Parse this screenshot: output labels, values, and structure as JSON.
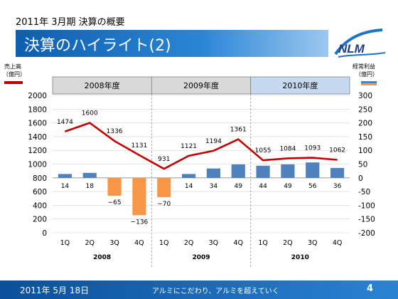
{
  "slide": {
    "supertitle": "2011年 3月期  決算の概要",
    "title": "決算のハイライト(2)",
    "logo_text": "NLM"
  },
  "footer": {
    "date": "2011年 5月 18日",
    "slogan": "アルミにこだわり、アルミを超えていく",
    "page": "4"
  },
  "colors": {
    "sales": "#4f81bd",
    "profit_positive": "#4f81bd",
    "profit_negative": "#f79646",
    "line": "#c00000",
    "header_bg": "#d9d9d9",
    "header_bg_current": "#c6d9f1",
    "title_bar": "#1e73c4",
    "footer": "#1a66b8"
  },
  "chart_data": {
    "type": "bar+line",
    "left_axis": {
      "label_line1": "売上高",
      "label_line2": "（億円）",
      "ylim": [
        0,
        2000
      ],
      "ticks": [
        0,
        200,
        400,
        600,
        800,
        1000,
        1200,
        1400,
        1600,
        1800,
        2000
      ]
    },
    "right_axis": {
      "label_line1": "経常利益",
      "label_line2": "（億円）",
      "ylim": [
        -200,
        300
      ],
      "ticks": [
        -200,
        -150,
        -100,
        -50,
        0,
        50,
        100,
        150,
        200,
        250,
        300
      ]
    },
    "periods": [
      "2008年度",
      "2009年度",
      "2010年度"
    ],
    "years": [
      "2008",
      "2009",
      "2010"
    ],
    "quarters": [
      "1Q",
      "2Q",
      "3Q",
      "4Q",
      "1Q",
      "2Q",
      "3Q",
      "4Q",
      "1Q",
      "2Q",
      "3Q",
      "4Q"
    ],
    "series": [
      {
        "axis": "left",
        "values": [
          1474,
          1600,
          1336,
          1131,
          931,
          1121,
          1194,
          1361,
          1055,
          1084,
          1093,
          1062
        ]
      },
      {
        "axis": "right",
        "values": [
          14,
          18,
          -65,
          -136,
          -70,
          14,
          34,
          49,
          44,
          49,
          56,
          36
        ]
      }
    ]
  }
}
